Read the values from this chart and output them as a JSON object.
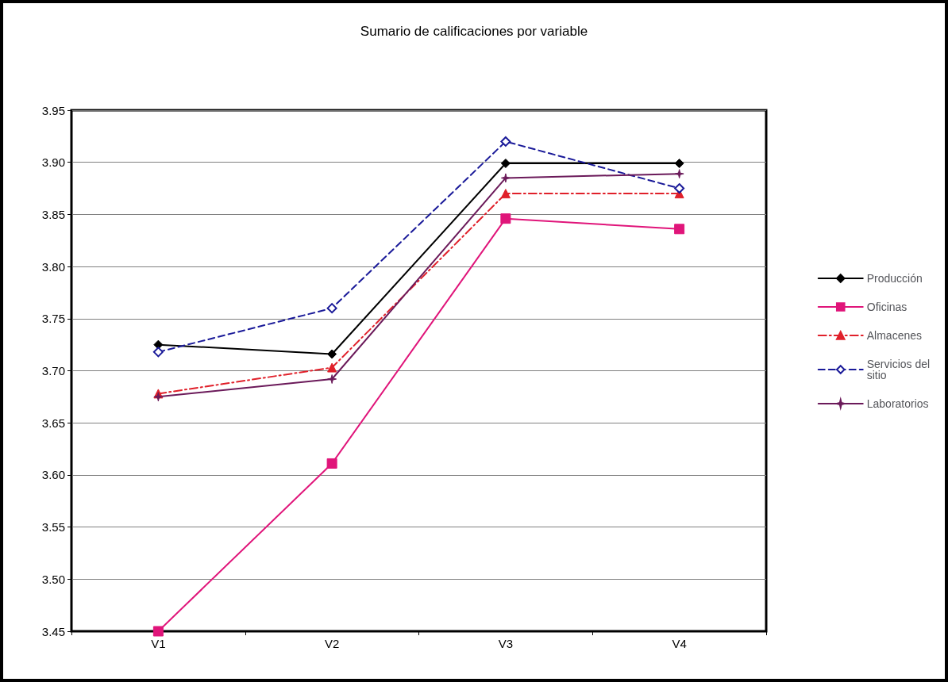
{
  "chart_data": {
    "type": "line",
    "title": "Sumario de calificaciones por variable",
    "categories": [
      "V1",
      "V2",
      "V3",
      "V4"
    ],
    "series": [
      {
        "name": "Producción",
        "color": "#000000",
        "marker": "diamond",
        "line_style": "solid",
        "values": [
          3.725,
          3.716,
          3.899,
          3.899
        ]
      },
      {
        "name": "Oficinas",
        "color": "#e0157a",
        "marker": "square",
        "line_style": "solid",
        "values": [
          3.45,
          3.611,
          3.846,
          3.836
        ]
      },
      {
        "name": "Almacenes",
        "color": "#e0202a",
        "marker": "triangle",
        "line_style": "dashdot",
        "values": [
          3.678,
          3.703,
          3.87,
          3.87
        ]
      },
      {
        "name": "Servicios del sitio",
        "color": "#1a1a99",
        "marker": "diamond-open",
        "line_style": "dashed",
        "values": [
          3.718,
          3.76,
          3.92,
          3.875
        ]
      },
      {
        "name": "Laboratorios",
        "color": "#6b1a5a",
        "marker": "star",
        "line_style": "solid",
        "values": [
          3.675,
          3.692,
          3.885,
          3.889
        ]
      }
    ],
    "ylim": [
      3.45,
      3.95
    ],
    "yticks": [
      3.45,
      {
        "value": 3.5,
        "label": "3.50"
      },
      3.55,
      {
        "value": 3.6,
        "label": "3.60"
      },
      3.65,
      {
        "value": 3.7,
        "label": "3.70"
      },
      3.75,
      {
        "value": 3.8,
        "label": "3.80"
      },
      3.85,
      {
        "value": 3.9,
        "label": "3.90"
      },
      3.95
    ],
    "grid": "y",
    "legend": "right"
  }
}
